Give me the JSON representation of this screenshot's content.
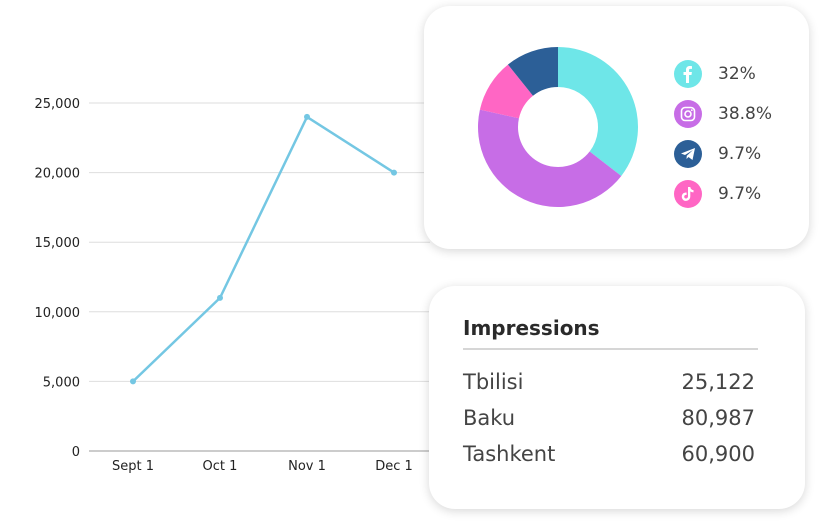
{
  "chart_data": [
    {
      "type": "line",
      "categories": [
        "Sept 1",
        "Oct 1",
        "Nov 1",
        "Dec 1"
      ],
      "values": [
        5000,
        11000,
        24000,
        20000
      ],
      "yticks": [
        "0",
        "5,000",
        "10,000",
        "15,000",
        "20,000",
        "25,000"
      ],
      "ylim": [
        0,
        25000
      ],
      "grid": true,
      "color": "#74c7e3"
    },
    {
      "type": "pie",
      "donut": true,
      "slices": [
        {
          "platform": "facebook",
          "icon": "facebook-icon",
          "label": "32%",
          "value": 32,
          "color": "#6ee6e8"
        },
        {
          "platform": "instagram",
          "icon": "instagram-icon",
          "label": "38.8%",
          "value": 38.8,
          "color": "#c76de6"
        },
        {
          "platform": "tiktok",
          "icon": "tiktok-icon",
          "label": "9.7%",
          "value": 9.7,
          "color": "#ff66c4"
        },
        {
          "platform": "telegram",
          "icon": "telegram-icon",
          "label": "9.7%",
          "value": 9.7,
          "color": "#2c5f97"
        }
      ],
      "legend_order": [
        "facebook",
        "instagram",
        "telegram",
        "tiktok"
      ]
    }
  ],
  "impressions": {
    "title": "Impressions",
    "rows": [
      {
        "city": "Tbilisi",
        "value": "25,122"
      },
      {
        "city": "Baku",
        "value": "80,987"
      },
      {
        "city": "Tashkent",
        "value": "60,900"
      }
    ]
  }
}
